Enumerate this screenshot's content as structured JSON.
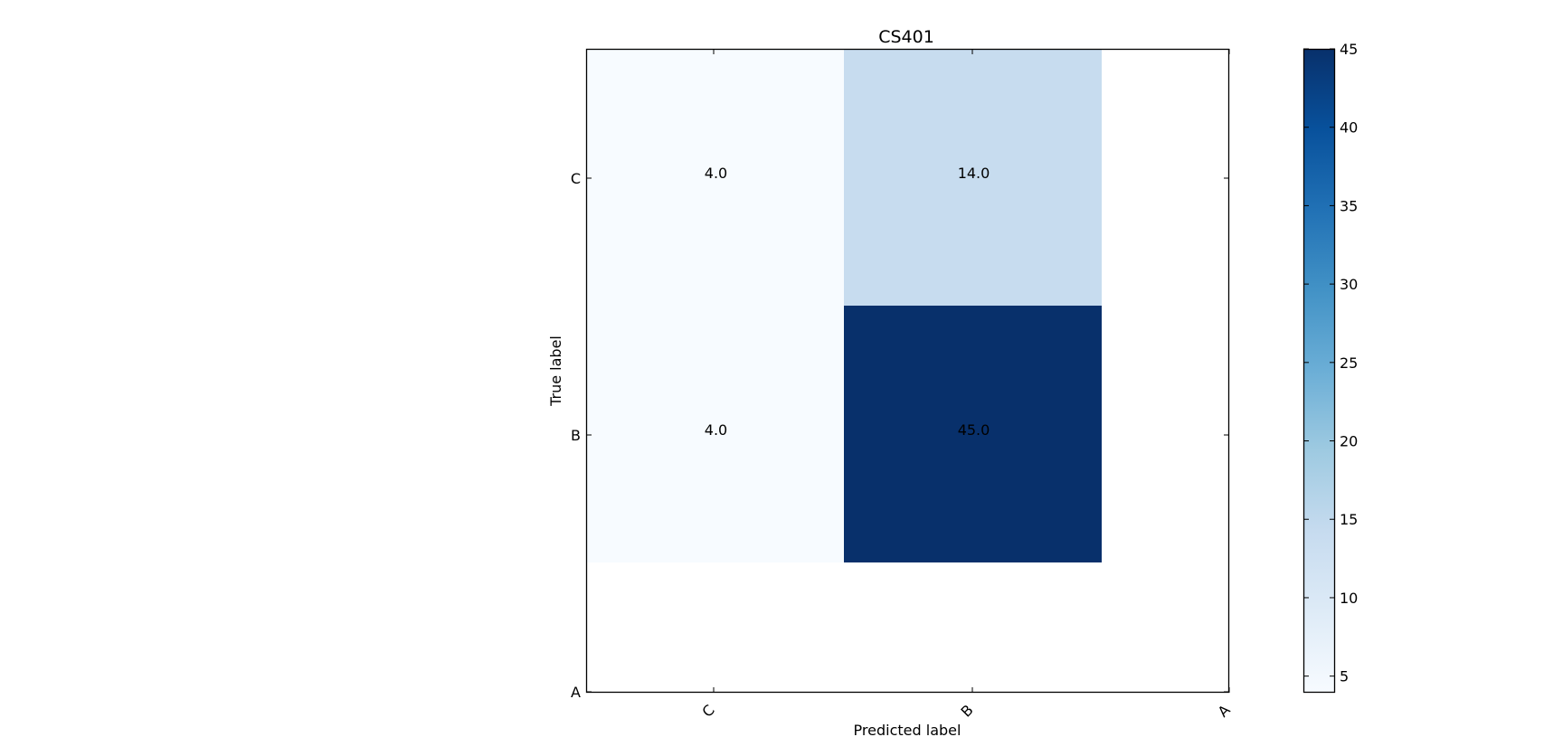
{
  "chart_data": {
    "type": "heatmap",
    "title": "CS401",
    "xlabel": "Predicted label",
    "ylabel": "True label",
    "x_categories": [
      "C",
      "B",
      "A"
    ],
    "y_categories": [
      "C",
      "B",
      "A"
    ],
    "cells": [
      {
        "row": "C",
        "col": "C",
        "value": 4.0,
        "label": "4.0"
      },
      {
        "row": "C",
        "col": "B",
        "value": 14.0,
        "label": "14.0"
      },
      {
        "row": "B",
        "col": "C",
        "value": 4.0,
        "label": "4.0"
      },
      {
        "row": "B",
        "col": "B",
        "value": 45.0,
        "label": "45.0"
      }
    ],
    "colormap": "Blues",
    "color_range": [
      4,
      45
    ],
    "colorbar_ticks": [
      "5",
      "10",
      "15",
      "20",
      "25",
      "30",
      "35",
      "40",
      "45"
    ],
    "colorbar_tick_values": [
      5,
      10,
      15,
      20,
      25,
      30,
      35,
      40,
      45
    ],
    "colorbar_stops": [
      "#f7fbff",
      "#deebf7",
      "#c6dbef",
      "#9ecae1",
      "#6baed6",
      "#4292c6",
      "#2171b5",
      "#08519c",
      "#08306b"
    ],
    "x_tick_rotation_deg": -45,
    "grid": false,
    "legend": "colorbar-right"
  }
}
